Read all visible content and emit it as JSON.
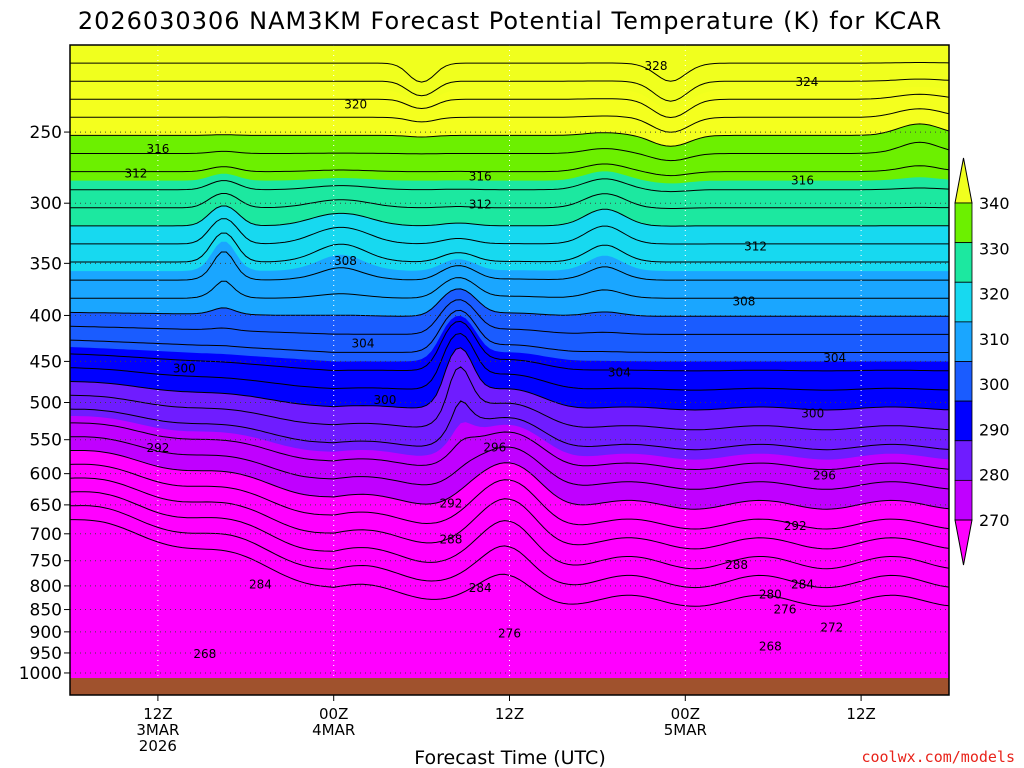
{
  "chart_data": {
    "type": "heatmap",
    "title": "2026030306 NAM3KM Forecast Potential Temperature (K) for KCAR",
    "xlabel": "Forecast Time (UTC)",
    "ylabel": "",
    "y_ticks_hpa": [
      "250",
      "300",
      "350",
      "400",
      "450",
      "500",
      "550",
      "600",
      "650",
      "700",
      "750",
      "800",
      "850",
      "900",
      "950",
      "1000"
    ],
    "x_ticks": [
      {
        "hour": 6,
        "lines": [
          "12Z",
          "3MAR",
          "2026"
        ]
      },
      {
        "hour": 18,
        "lines": [
          "00Z",
          "4MAR"
        ]
      },
      {
        "hour": 30,
        "lines": [
          "12Z"
        ]
      },
      {
        "hour": 42,
        "lines": [
          "00Z",
          "5MAR"
        ]
      },
      {
        "hour": 54,
        "lines": [
          "12Z"
        ]
      }
    ],
    "xlim_hours": [
      0,
      60
    ],
    "ylim_hpa": [
      1013,
      200
    ],
    "colorbar": {
      "levels": [
        "270",
        "280",
        "290",
        "300",
        "310",
        "320",
        "330",
        "340"
      ],
      "colors": [
        "#ff00ff",
        "#c000ff",
        "#6f1cff",
        "#0000ff",
        "#1a5cff",
        "#1aa6ff",
        "#17d9f0",
        "#1ce8a0",
        "#6cf000",
        "#f4ff1e"
      ],
      "under_color": "#ff00ff",
      "over_color": "#f0ff1e"
    },
    "contour_labels": [
      {
        "text": "328",
        "t": 40.0,
        "p": 211
      },
      {
        "text": "324",
        "t": 50.3,
        "p": 220
      },
      {
        "text": "320",
        "t": 19.5,
        "p": 233
      },
      {
        "text": "316",
        "t": 6.0,
        "p": 261
      },
      {
        "text": "312",
        "t": 4.5,
        "p": 278
      },
      {
        "text": "316",
        "t": 28.0,
        "p": 280
      },
      {
        "text": "316",
        "t": 50.0,
        "p": 283
      },
      {
        "text": "312",
        "t": 28.0,
        "p": 301
      },
      {
        "text": "312",
        "t": 46.8,
        "p": 335
      },
      {
        "text": "308",
        "t": 18.8,
        "p": 348
      },
      {
        "text": "308",
        "t": 46.0,
        "p": 386
      },
      {
        "text": "304",
        "t": 20.0,
        "p": 430
      },
      {
        "text": "304",
        "t": 52.2,
        "p": 446
      },
      {
        "text": "304",
        "t": 37.5,
        "p": 463
      },
      {
        "text": "300",
        "t": 7.8,
        "p": 458
      },
      {
        "text": "300",
        "t": 21.5,
        "p": 497
      },
      {
        "text": "300",
        "t": 50.7,
        "p": 514
      },
      {
        "text": "296",
        "t": 29.0,
        "p": 561
      },
      {
        "text": "296",
        "t": 51.5,
        "p": 603
      },
      {
        "text": "292",
        "t": 6.0,
        "p": 562
      },
      {
        "text": "292",
        "t": 26.0,
        "p": 648
      },
      {
        "text": "292",
        "t": 49.5,
        "p": 686
      },
      {
        "text": "288",
        "t": 26.0,
        "p": 710
      },
      {
        "text": "288",
        "t": 45.5,
        "p": 758
      },
      {
        "text": "284",
        "t": 13.0,
        "p": 797
      },
      {
        "text": "284",
        "t": 28.0,
        "p": 804
      },
      {
        "text": "284",
        "t": 50.0,
        "p": 797
      },
      {
        "text": "280",
        "t": 47.8,
        "p": 818
      },
      {
        "text": "276",
        "t": 48.8,
        "p": 850
      },
      {
        "text": "276",
        "t": 30.0,
        "p": 904
      },
      {
        "text": "272",
        "t": 52.0,
        "p": 890
      },
      {
        "text": "268",
        "t": 47.8,
        "p": 934
      },
      {
        "text": "268",
        "t": 9.2,
        "p": 953
      }
    ]
  },
  "credit": "coolwx.com/models"
}
